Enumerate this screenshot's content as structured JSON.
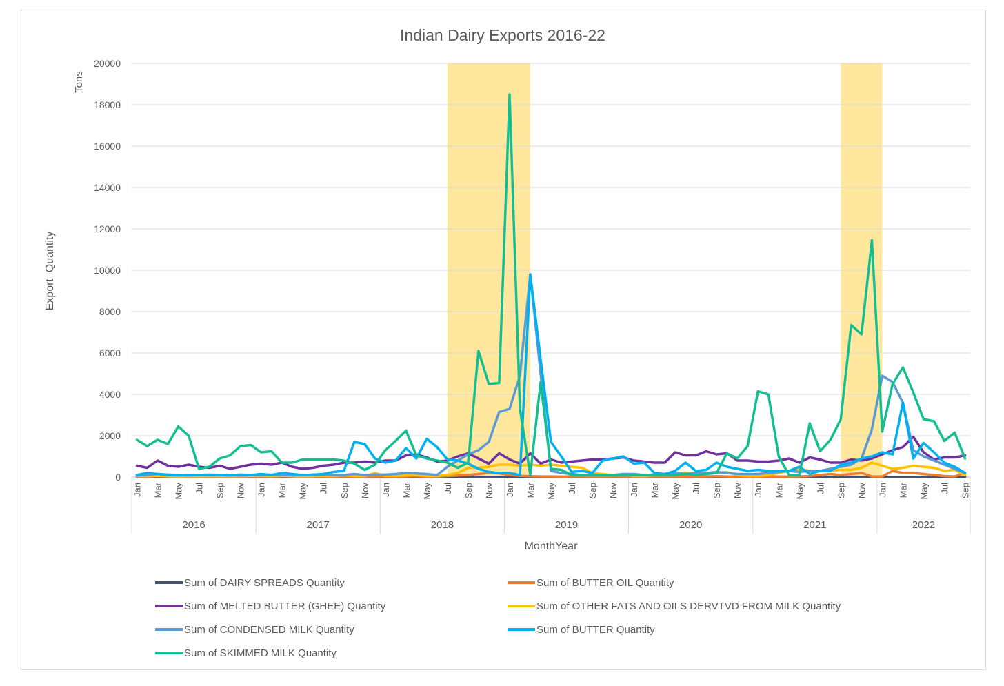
{
  "chart_data": {
    "type": "line",
    "title": "Indian Dairy Exports 2016-22",
    "unit_label": "Tons",
    "ylabel": "Export  Quantity",
    "xlabel": "MonthYear",
    "ylim": [
      0,
      20000
    ],
    "yticks": [
      "0",
      "2000",
      "4000",
      "6000",
      "8000",
      "10000",
      "12000",
      "14000",
      "16000",
      "18000",
      "20000"
    ],
    "grid": true,
    "legend_position": "bottom",
    "years": [
      "2016",
      "2017",
      "2018",
      "2019",
      "2020",
      "2021",
      "2022"
    ],
    "month_names": [
      "Jan",
      "Feb",
      "Mar",
      "Apr",
      "May",
      "Jun",
      "Jul",
      "Aug",
      "Sep",
      "Oct",
      "Nov",
      "Dec"
    ],
    "months_in_last_year": 9,
    "highlight_color": "#ffe699",
    "highlights": [
      {
        "from": "2018-Jul",
        "to": "2019-Mar"
      },
      {
        "from": "2021-Sep",
        "to": "2022-Jan"
      }
    ],
    "series": [
      {
        "name": "Sum of DAIRY SPREADS Quantity",
        "color": "#44546a",
        "values": [
          10,
          10,
          10,
          10,
          10,
          10,
          10,
          10,
          10,
          10,
          10,
          10,
          10,
          10,
          10,
          10,
          10,
          10,
          10,
          10,
          10,
          10,
          10,
          10,
          10,
          10,
          10,
          10,
          10,
          10,
          10,
          10,
          10,
          10,
          10,
          10,
          10,
          10,
          10,
          10,
          10,
          10,
          10,
          10,
          10,
          10,
          10,
          10,
          10,
          10,
          10,
          10,
          10,
          10,
          10,
          10,
          10,
          10,
          10,
          10,
          10,
          10,
          10,
          10,
          10,
          10,
          10,
          10,
          10,
          10,
          10,
          10,
          10,
          10,
          10,
          10,
          10,
          10,
          10,
          10,
          10
        ]
      },
      {
        "name": "Sum of BUTTER OIL Quantity",
        "color": "#ed7d31",
        "values": [
          30,
          20,
          40,
          30,
          20,
          20,
          30,
          20,
          30,
          20,
          20,
          20,
          30,
          20,
          40,
          30,
          20,
          30,
          20,
          20,
          30,
          20,
          20,
          30,
          30,
          20,
          30,
          40,
          20,
          30,
          50,
          80,
          100,
          150,
          200,
          180,
          100,
          60,
          40,
          30,
          30,
          20,
          30,
          30,
          20,
          20,
          30,
          20,
          20,
          20,
          30,
          20,
          20,
          30,
          20,
          30,
          40,
          30,
          20,
          20,
          20,
          20,
          30,
          20,
          30,
          50,
          100,
          150,
          100,
          150,
          200,
          30,
          30,
          300,
          200,
          200,
          150,
          100,
          50,
          30,
          200
        ]
      },
      {
        "name": "Sum of MELTED BUTTER (GHEE) Quantity",
        "color": "#7030a0",
        "values": [
          550,
          450,
          800,
          550,
          500,
          600,
          500,
          450,
          550,
          400,
          500,
          600,
          650,
          600,
          700,
          500,
          400,
          450,
          550,
          600,
          700,
          700,
          750,
          700,
          800,
          800,
          1050,
          1100,
          950,
          750,
          800,
          1000,
          1150,
          900,
          650,
          1150,
          850,
          650,
          1150,
          650,
          850,
          700,
          750,
          800,
          850,
          850,
          900,
          950,
          800,
          750,
          700,
          700,
          1200,
          1050,
          1050,
          1250,
          1100,
          1150,
          800,
          800,
          750,
          750,
          800,
          900,
          700,
          950,
          850,
          700,
          700,
          850,
          800,
          900,
          1100,
          1300,
          1450,
          1950,
          1200,
          850,
          950,
          950,
          1050
        ]
      },
      {
        "name": "Sum of OTHER FATS AND OILS DERVTVD  FROM MILK Quantity",
        "color": "#ffc000",
        "values": [
          50,
          50,
          60,
          40,
          30,
          40,
          40,
          50,
          50,
          40,
          50,
          60,
          60,
          50,
          60,
          40,
          40,
          50,
          60,
          50,
          100,
          50,
          50,
          200,
          50,
          60,
          80,
          100,
          50,
          50,
          100,
          200,
          450,
          450,
          500,
          600,
          600,
          550,
          600,
          550,
          600,
          550,
          500,
          450,
          200,
          150,
          100,
          150,
          50,
          50,
          100,
          100,
          150,
          200,
          150,
          200,
          200,
          250,
          100,
          50,
          50,
          100,
          200,
          300,
          400,
          300,
          300,
          300,
          350,
          350,
          450,
          700,
          550,
          400,
          450,
          550,
          500,
          450,
          300,
          350,
          100
        ]
      },
      {
        "name": "Sum of CONDENSED MILK Quantity",
        "color": "#5b9bd5",
        "values": [
          80,
          100,
          150,
          120,
          100,
          80,
          100,
          120,
          100,
          100,
          80,
          100,
          100,
          120,
          100,
          80,
          100,
          100,
          120,
          100,
          100,
          150,
          100,
          120,
          120,
          150,
          200,
          180,
          150,
          100,
          500,
          800,
          1100,
          1300,
          1700,
          3150,
          3300,
          4900,
          9800,
          5000,
          300,
          200,
          150,
          100,
          120,
          100,
          100,
          150,
          150,
          100,
          120,
          150,
          200,
          150,
          200,
          200,
          250,
          200,
          150,
          150,
          150,
          200,
          250,
          300,
          250,
          300,
          300,
          400,
          500,
          600,
          900,
          2300,
          4900,
          4600,
          3600,
          1300,
          1000,
          800,
          600,
          400,
          200
        ]
      },
      {
        "name": "Sum of BUTTER Quantity",
        "color": "#00b0f0",
        "values": [
          100,
          200,
          150,
          100,
          80,
          100,
          100,
          100,
          100,
          80,
          120,
          100,
          150,
          100,
          200,
          150,
          100,
          120,
          150,
          250,
          300,
          1700,
          1600,
          900,
          700,
          800,
          1400,
          900,
          1850,
          1450,
          850,
          800,
          650,
          400,
          250,
          200,
          200,
          100,
          9800,
          5700,
          1700,
          1000,
          250,
          300,
          200,
          800,
          900,
          1000,
          650,
          700,
          200,
          150,
          300,
          700,
          300,
          350,
          700,
          500,
          400,
          300,
          350,
          300,
          300,
          300,
          500,
          150,
          300,
          300,
          600,
          700,
          900,
          1000,
          1200,
          1100,
          3600,
          900,
          1650,
          1200,
          700,
          500,
          200
        ]
      },
      {
        "name": "Sum of SKIMMED MILK Quantity",
        "color": "#13bf91",
        "values": [
          1800,
          1500,
          1800,
          1600,
          2450,
          2000,
          400,
          500,
          900,
          1050,
          1500,
          1550,
          1200,
          1250,
          700,
          700,
          850,
          850,
          850,
          850,
          800,
          650,
          350,
          600,
          1300,
          1750,
          2250,
          1050,
          900,
          800,
          700,
          450,
          700,
          6100,
          4500,
          4550,
          18500,
          3300,
          100,
          4600,
          400,
          350,
          100,
          100,
          100,
          100,
          100,
          100,
          100,
          100,
          100,
          100,
          100,
          150,
          100,
          150,
          200,
          1150,
          900,
          1500,
          4150,
          4000,
          1000,
          100,
          100,
          2600,
          1250,
          1800,
          2800,
          7350,
          6900,
          11450,
          2200,
          4500,
          5300,
          4100,
          2800,
          2700,
          1750,
          2150,
          900
        ]
      }
    ]
  }
}
